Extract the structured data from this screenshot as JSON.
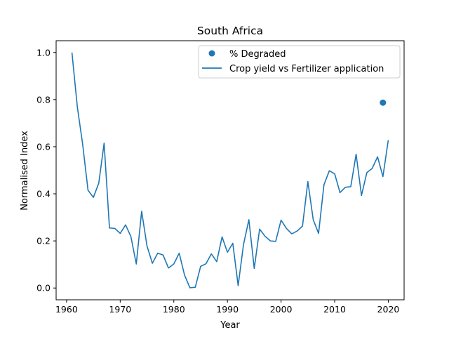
{
  "chart_data": {
    "type": "line",
    "title": "South Africa",
    "xlabel": "Year",
    "ylabel": "Normalised Index",
    "xlim": [
      1958.05,
      2022.95
    ],
    "ylim": [
      -0.05,
      1.05
    ],
    "x_ticks": [
      1960,
      1970,
      1980,
      1990,
      2000,
      2010,
      2020
    ],
    "y_ticks": [
      0.0,
      0.2,
      0.4,
      0.6,
      0.8,
      1.0
    ],
    "x_tick_labels": [
      "1960",
      "1970",
      "1980",
      "1990",
      "2000",
      "2010",
      "2020"
    ],
    "y_tick_labels": [
      "0.0",
      "0.2",
      "0.4",
      "0.6",
      "0.8",
      "1.0"
    ],
    "grid": false,
    "legend_position": "top-right",
    "series": [
      {
        "name": "Crop yield vs Fertilizer application",
        "type": "line",
        "color": "#1f77b4",
        "x": [
          1961,
          1962,
          1963,
          1964,
          1965,
          1966,
          1967,
          1968,
          1969,
          1970,
          1971,
          1972,
          1973,
          1974,
          1975,
          1976,
          1977,
          1978,
          1979,
          1980,
          1981,
          1982,
          1983,
          1984,
          1985,
          1986,
          1987,
          1988,
          1989,
          1990,
          1991,
          1992,
          1993,
          1994,
          1995,
          1996,
          1997,
          1998,
          1999,
          2000,
          2001,
          2002,
          2003,
          2004,
          2005,
          2006,
          2007,
          2008,
          2009,
          2010,
          2011,
          2012,
          2013,
          2014,
          2015,
          2016,
          2017,
          2018,
          2019,
          2020
        ],
        "values": [
          1.0,
          0.77,
          0.61,
          0.415,
          0.385,
          0.445,
          0.615,
          0.255,
          0.253,
          0.232,
          0.268,
          0.218,
          0.102,
          0.326,
          0.178,
          0.105,
          0.148,
          0.14,
          0.085,
          0.102,
          0.148,
          0.055,
          0.001,
          0.003,
          0.092,
          0.103,
          0.145,
          0.112,
          0.217,
          0.152,
          0.19,
          0.01,
          0.185,
          0.29,
          0.083,
          0.25,
          0.22,
          0.2,
          0.198,
          0.288,
          0.253,
          0.23,
          0.242,
          0.263,
          0.452,
          0.29,
          0.232,
          0.438,
          0.498,
          0.485,
          0.405,
          0.428,
          0.43,
          0.568,
          0.393,
          0.49,
          0.508,
          0.557,
          0.473,
          0.628
        ]
      },
      {
        "name": "% Degraded",
        "type": "scatter",
        "color": "#1f77b4",
        "x": [
          2019
        ],
        "values": [
          0.787
        ]
      }
    ]
  }
}
